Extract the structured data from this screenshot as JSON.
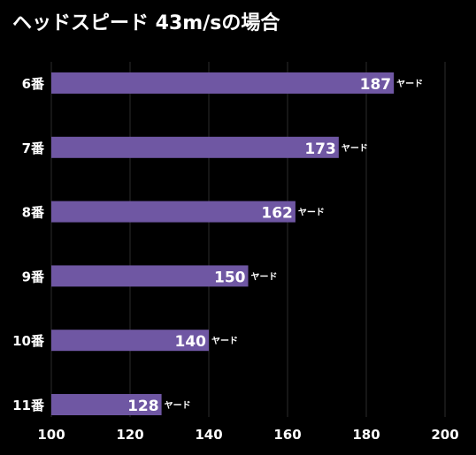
{
  "chart_data": {
    "type": "bar",
    "orientation": "horizontal",
    "title": "ヘッドスピード 43m/sの場合",
    "categories": [
      "6番",
      "7番",
      "8番",
      "9番",
      "10番",
      "11番"
    ],
    "values": [
      187,
      173,
      162,
      150,
      140,
      128
    ],
    "unit": "ヤード",
    "xlim": [
      100,
      200
    ],
    "xticks": [
      "100",
      "120",
      "140",
      "160",
      "180",
      "200"
    ],
    "grid": true,
    "bar_color": "#6f57a3",
    "background": "#000000",
    "text_color": "#ffffff"
  }
}
